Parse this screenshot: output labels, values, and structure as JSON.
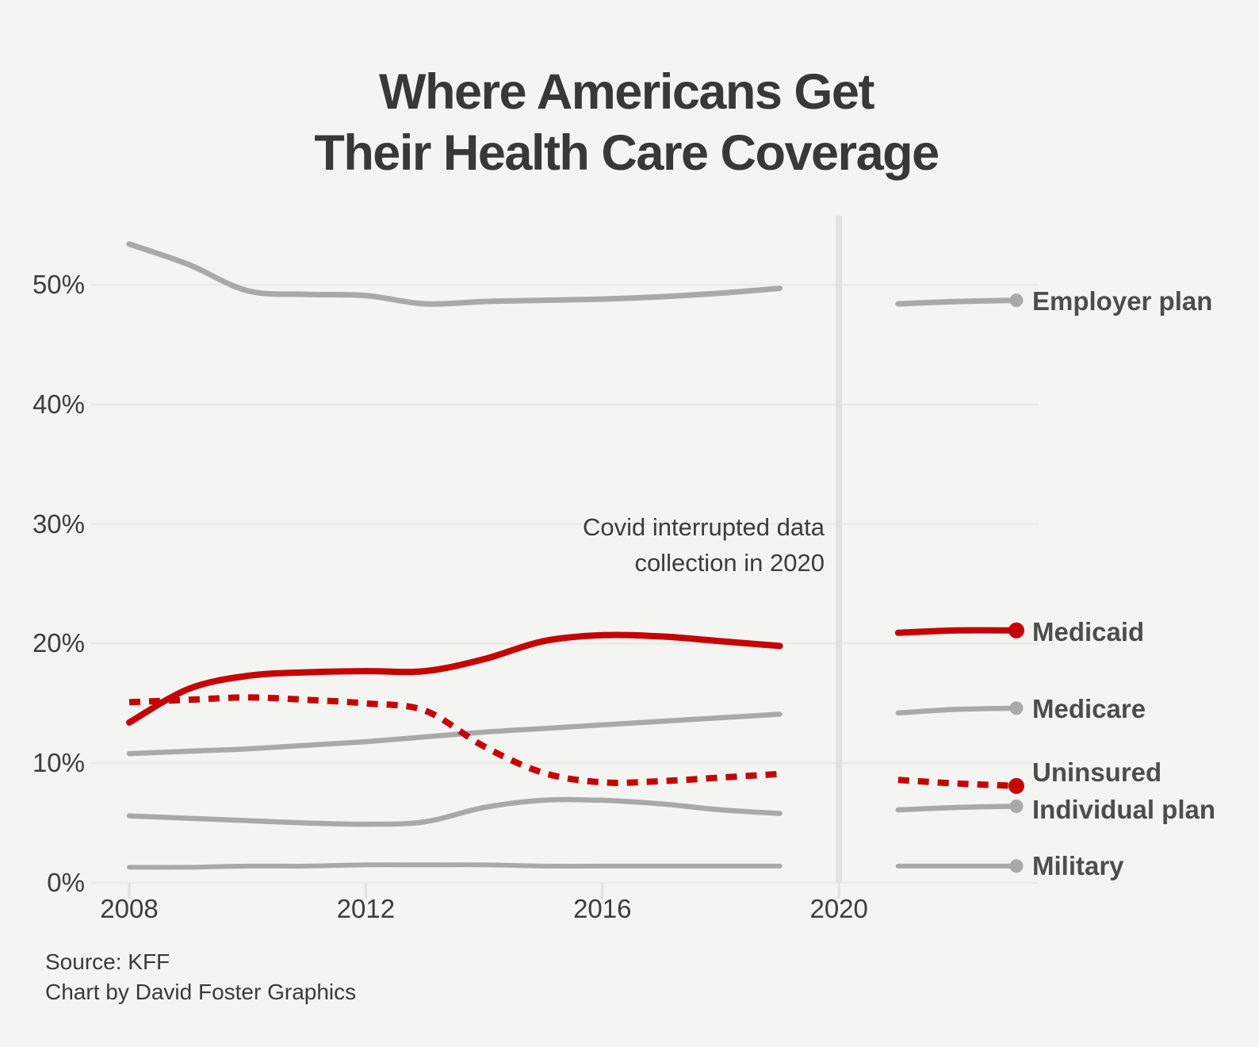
{
  "title": {
    "line1": "Where Americans Get",
    "line2": "Their Health Care Coverage"
  },
  "annotation": {
    "line1": "Covid interrupted data",
    "line2": "collection in 2020"
  },
  "source": {
    "line1": "Source: KFF",
    "line2": "Chart by David Foster Graphics"
  },
  "colors": {
    "background": "#f4f4f2",
    "red": "#c50505",
    "gray_line": "#a9a9a9",
    "grid": "#eaeae8",
    "covid_divider": "#e1e1de",
    "title_text": "#383838",
    "axis_text": "#3d3d3d",
    "legend_text": "#4d4d4d"
  },
  "chart_data": {
    "type": "line",
    "title": "Where Americans Get Their Health Care Coverage",
    "xlabel": "",
    "ylabel": "",
    "xlim": [
      2007.9,
      2023.3
    ],
    "ylim": [
      0,
      55
    ],
    "grid": "horizontal",
    "legend_position": "right-direct-labels",
    "note": "Covid interrupted data collection in 2020",
    "x": [
      2008,
      2009,
      2010,
      2011,
      2012,
      2013,
      2014,
      2015,
      2016,
      2017,
      2018,
      2019
    ],
    "x_post_gap": [
      2021,
      2022,
      2023
    ],
    "x_axis": {
      "tick_labels": [
        "2008",
        "2012",
        "2016",
        "2020"
      ],
      "tick_values": [
        2008,
        2012,
        2016,
        2020
      ]
    },
    "y_axis": {
      "tick_labels": [
        "0%",
        "10%",
        "20%",
        "30%",
        "40%",
        "50%"
      ],
      "tick_values": [
        0,
        10,
        20,
        30,
        40,
        50
      ]
    },
    "covid_divider_year": 2020,
    "series": [
      {
        "id": "employer",
        "label": "Employer plan",
        "color": "gray",
        "dash": "solid",
        "values": [
          53.4,
          51.7,
          49.5,
          49.2,
          49.1,
          48.4,
          48.6,
          48.7,
          48.8,
          49.0,
          49.3,
          49.7
        ],
        "post_values": [
          48.4,
          48.6,
          48.7
        ]
      },
      {
        "id": "medicaid",
        "label": "Medicaid",
        "color": "red",
        "dash": "solid",
        "values": [
          13.4,
          16.2,
          17.3,
          17.6,
          17.7,
          17.7,
          18.7,
          20.2,
          20.7,
          20.6,
          20.2,
          19.8
        ],
        "post_values": [
          20.9,
          21.1,
          21.1
        ]
      },
      {
        "id": "medicare",
        "label": "Medicare",
        "color": "gray",
        "dash": "solid",
        "values": [
          10.8,
          11.0,
          11.2,
          11.5,
          11.8,
          12.2,
          12.6,
          12.9,
          13.2,
          13.5,
          13.8,
          14.1
        ],
        "post_values": [
          14.2,
          14.5,
          14.6
        ]
      },
      {
        "id": "uninsured",
        "label": "Uninsured",
        "color": "red",
        "dash": "dashed",
        "values": [
          15.1,
          15.3,
          15.5,
          15.3,
          15.0,
          14.4,
          11.4,
          9.2,
          8.4,
          8.5,
          8.8,
          9.1
        ],
        "post_values": [
          8.6,
          8.3,
          8.1
        ]
      },
      {
        "id": "individual",
        "label": "Individual plan",
        "color": "gray",
        "dash": "solid",
        "values": [
          5.6,
          5.4,
          5.2,
          5.0,
          4.9,
          5.1,
          6.3,
          6.9,
          6.9,
          6.6,
          6.1,
          5.8
        ],
        "post_values": [
          6.1,
          6.3,
          6.4
        ]
      },
      {
        "id": "military",
        "label": "Military",
        "color": "gray",
        "dash": "solid",
        "values": [
          1.3,
          1.3,
          1.4,
          1.4,
          1.5,
          1.5,
          1.5,
          1.4,
          1.4,
          1.4,
          1.4,
          1.4
        ],
        "post_values": [
          1.4,
          1.4,
          1.4
        ]
      }
    ]
  }
}
